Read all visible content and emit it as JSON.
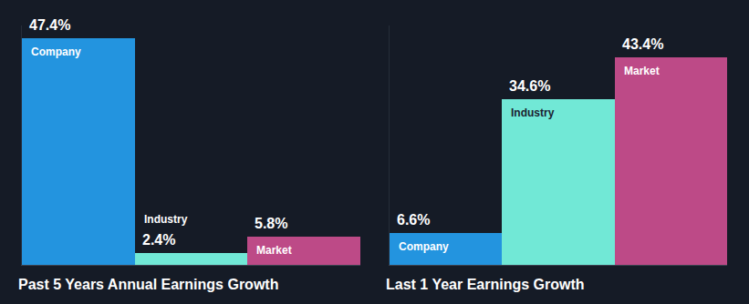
{
  "chart_data": [
    {
      "type": "bar",
      "title": "Past 5 Years Annual Earnings Growth",
      "categories": [
        "Company",
        "Industry",
        "Market"
      ],
      "values": [
        47.4,
        2.4,
        5.8
      ],
      "value_labels": [
        "47.4%",
        "2.4%",
        "5.8%"
      ],
      "colors": [
        "#2394df",
        "#71e8d6",
        "#bd4a87"
      ],
      "ylim": [
        0,
        50
      ],
      "data_labels": true,
      "tick_labels": false,
      "grid": false
    },
    {
      "type": "bar",
      "title": "Last 1 Year Earnings Growth",
      "categories": [
        "Company",
        "Industry",
        "Market"
      ],
      "values": [
        6.6,
        34.6,
        43.4
      ],
      "value_labels": [
        "6.6%",
        "34.6%",
        "43.4%"
      ],
      "colors": [
        "#2394df",
        "#71e8d6",
        "#bd4a87"
      ],
      "ylim": [
        0,
        50
      ],
      "data_labels": true,
      "tick_labels": false,
      "grid": false
    }
  ]
}
